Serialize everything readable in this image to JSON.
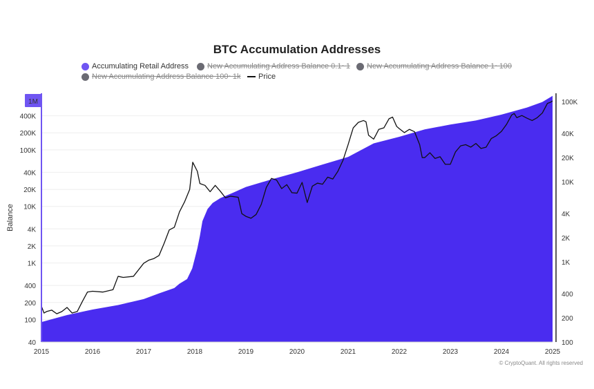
{
  "chart_data": {
    "type": "area",
    "title": "BTC Accumulation Addresses",
    "ylabel": "Balance",
    "y_scale": "log",
    "ylim": [
      40,
      1000000
    ],
    "y2_scale": "log",
    "y2lim": [
      100,
      130000
    ],
    "y_ticks": [
      {
        "v": 40,
        "label": "40"
      },
      {
        "v": 100,
        "label": "100"
      },
      {
        "v": 200,
        "label": "200"
      },
      {
        "v": 400,
        "label": "400"
      },
      {
        "v": 1000,
        "label": "1K"
      },
      {
        "v": 2000,
        "label": "2K"
      },
      {
        "v": 4000,
        "label": "4K"
      },
      {
        "v": 10000,
        "label": "10K"
      },
      {
        "v": 20000,
        "label": "20K"
      },
      {
        "v": 40000,
        "label": "40K"
      },
      {
        "v": 100000,
        "label": "100K"
      },
      {
        "v": 200000,
        "label": "200K"
      },
      {
        "v": 400000,
        "label": "400K"
      }
    ],
    "y_top_badge": "1M",
    "y2_ticks": [
      {
        "v": 100,
        "label": "100"
      },
      {
        "v": 200,
        "label": "200"
      },
      {
        "v": 400,
        "label": "400"
      },
      {
        "v": 1000,
        "label": "1K"
      },
      {
        "v": 2000,
        "label": "2K"
      },
      {
        "v": 4000,
        "label": "4K"
      },
      {
        "v": 10000,
        "label": "10K"
      },
      {
        "v": 20000,
        "label": "20K"
      },
      {
        "v": 40000,
        "label": "40K"
      },
      {
        "v": 100000,
        "label": "100K"
      }
    ],
    "x_range": [
      2015.0,
      2025.0
    ],
    "x_ticks": [
      {
        "v": 2015,
        "label": "2015"
      },
      {
        "v": 2016,
        "label": "2016"
      },
      {
        "v": 2017,
        "label": "2017"
      },
      {
        "v": 2018,
        "label": "2018"
      },
      {
        "v": 2019,
        "label": "2019"
      },
      {
        "v": 2020,
        "label": "2020"
      },
      {
        "v": 2021,
        "label": "2021"
      },
      {
        "v": 2022,
        "label": "2022"
      },
      {
        "v": 2023,
        "label": "2023"
      },
      {
        "v": 2024,
        "label": "2024"
      },
      {
        "v": 2025,
        "label": "2025"
      }
    ],
    "legend": [
      {
        "name": "Accumulating Retail Address",
        "color": "#6f55f2",
        "active": true,
        "kind": "dot"
      },
      {
        "name": "New Accumulating Address Balance 0.1~1",
        "color": "#6b6b73",
        "active": false,
        "kind": "dot"
      },
      {
        "name": "New Accumulating Address Balance 1~100",
        "color": "#6b6b73",
        "active": false,
        "kind": "dot"
      },
      {
        "name": "New Accumulating Address Balance 100~1k",
        "color": "#6b6b73",
        "active": false,
        "kind": "dot"
      },
      {
        "name": "Price",
        "color": "#111111",
        "active": true,
        "kind": "line"
      }
    ],
    "series": [
      {
        "name": "Accumulating Retail Address",
        "axis": "left",
        "color": "#4a2cf0",
        "x": [
          2015.0,
          2015.5,
          2016.0,
          2016.5,
          2017.0,
          2017.3,
          2017.6,
          2017.7,
          2017.85,
          2017.95,
          2018.0,
          2018.05,
          2018.1,
          2018.15,
          2018.25,
          2018.35,
          2018.5,
          2018.75,
          2019.0,
          2019.5,
          2020.0,
          2020.5,
          2021.0,
          2021.5,
          2022.0,
          2022.5,
          2023.0,
          2023.5,
          2024.0,
          2024.5,
          2024.8,
          2025.0
        ],
        "values": [
          90,
          120,
          150,
          180,
          230,
          290,
          360,
          430,
          520,
          800,
          1200,
          1800,
          3000,
          5500,
          9000,
          11500,
          14000,
          17500,
          22000,
          30000,
          40000,
          55000,
          75000,
          130000,
          170000,
          230000,
          280000,
          330000,
          420000,
          560000,
          700000,
          900000
        ]
      },
      {
        "name": "Price",
        "axis": "right",
        "color": "#111111",
        "x": [
          2015.0,
          2015.05,
          2015.1,
          2015.2,
          2015.3,
          2015.4,
          2015.5,
          2015.6,
          2015.7,
          2015.8,
          2015.9,
          2016.0,
          2016.2,
          2016.4,
          2016.5,
          2016.6,
          2016.8,
          2017.0,
          2017.1,
          2017.2,
          2017.3,
          2017.4,
          2017.5,
          2017.6,
          2017.7,
          2017.8,
          2017.9,
          2017.96,
          2018.05,
          2018.1,
          2018.2,
          2018.3,
          2018.4,
          2018.5,
          2018.6,
          2018.7,
          2018.85,
          2018.92,
          2019.0,
          2019.1,
          2019.2,
          2019.3,
          2019.4,
          2019.5,
          2019.6,
          2019.7,
          2019.8,
          2019.9,
          2020.0,
          2020.1,
          2020.2,
          2020.3,
          2020.4,
          2020.5,
          2020.6,
          2020.7,
          2020.8,
          2020.9,
          2021.0,
          2021.05,
          2021.1,
          2021.2,
          2021.3,
          2021.35,
          2021.4,
          2021.5,
          2021.55,
          2021.6,
          2021.7,
          2021.8,
          2021.87,
          2021.95,
          2022.0,
          2022.1,
          2022.2,
          2022.3,
          2022.4,
          2022.45,
          2022.5,
          2022.6,
          2022.7,
          2022.8,
          2022.9,
          2023.0,
          2023.1,
          2023.2,
          2023.3,
          2023.4,
          2023.5,
          2023.6,
          2023.7,
          2023.8,
          2023.9,
          2024.0,
          2024.1,
          2024.2,
          2024.25,
          2024.3,
          2024.4,
          2024.5,
          2024.6,
          2024.7,
          2024.8,
          2024.9,
          2024.96,
          2025.0
        ],
        "values": [
          280,
          230,
          240,
          250,
          225,
          240,
          270,
          230,
          240,
          320,
          420,
          430,
          420,
          450,
          660,
          640,
          660,
          960,
          1050,
          1100,
          1200,
          1700,
          2500,
          2700,
          4200,
          5600,
          8000,
          17500,
          13500,
          9500,
          9000,
          7500,
          9000,
          7600,
          6300,
          6600,
          6400,
          4000,
          3700,
          3500,
          3900,
          5200,
          8500,
          11000,
          10500,
          8200,
          9200,
          7300,
          7200,
          9800,
          5500,
          8800,
          9600,
          9300,
          11400,
          10800,
          13500,
          18500,
          29000,
          37000,
          47000,
          55000,
          58000,
          56000,
          38000,
          34000,
          39000,
          45000,
          47000,
          61000,
          64000,
          49000,
          46000,
          41000,
          45000,
          42000,
          29000,
          20000,
          20000,
          23000,
          19500,
          20500,
          16500,
          16500,
          23500,
          28000,
          29000,
          27000,
          30000,
          26000,
          27000,
          34500,
          37500,
          42500,
          52000,
          68000,
          71000,
          63000,
          67000,
          62000,
          58000,
          63000,
          72000,
          95000,
          98000,
          102000
        ]
      }
    ]
  },
  "watermark": "© CryptoQuant. All rights reserved"
}
